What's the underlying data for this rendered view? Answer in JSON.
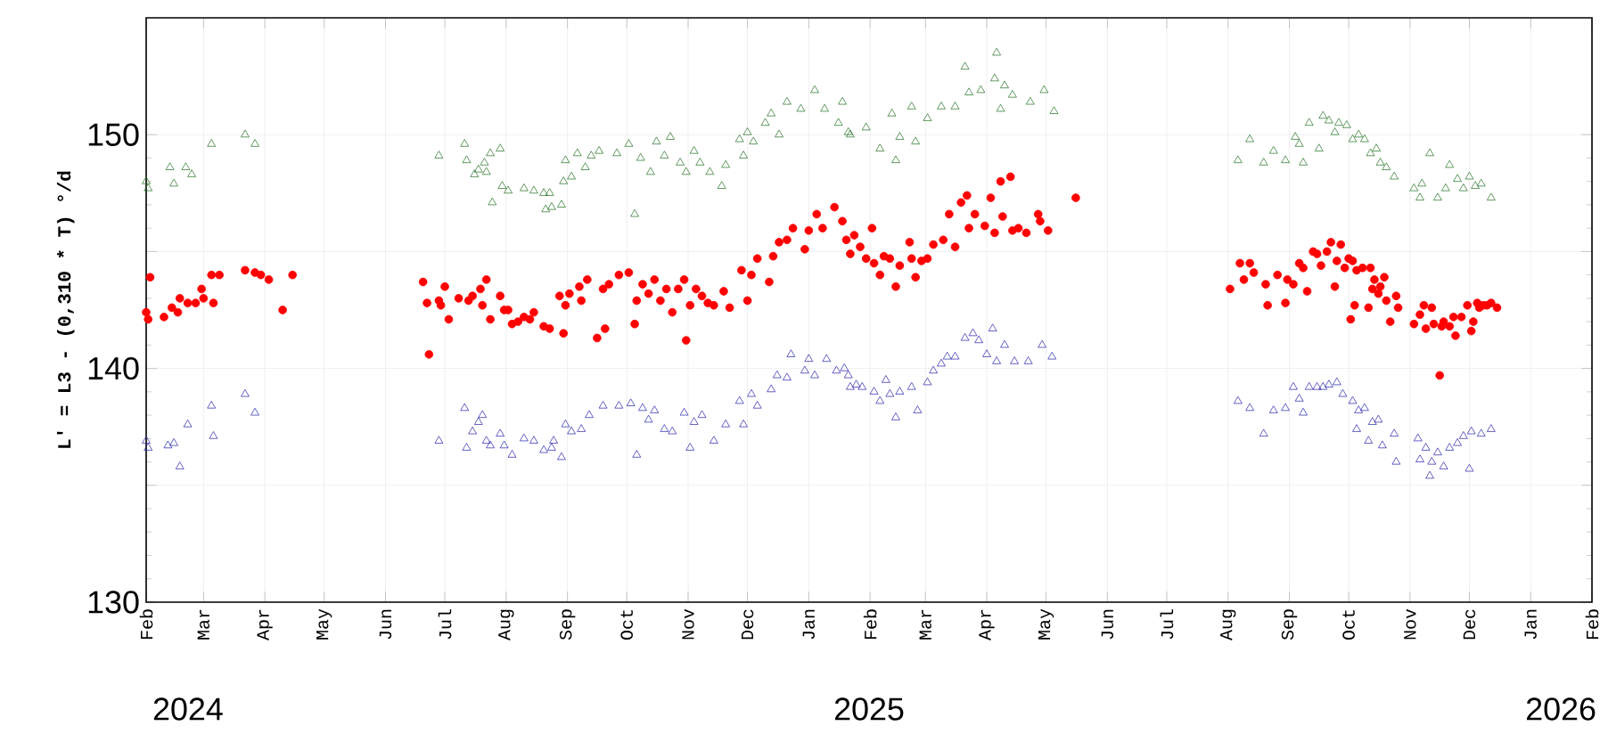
{
  "chart_data": {
    "type": "scatter",
    "ylabel": "L' = L3 - (0,310 * T) °/d",
    "xlim": [
      "2024-02-01",
      "2026-02-01"
    ],
    "ylim": [
      130,
      155
    ],
    "xticks": [
      {
        "value": "2024-02",
        "label": "Feb"
      },
      {
        "value": "2024-03",
        "label": "Mar"
      },
      {
        "value": "2024-04",
        "label": "Apr"
      },
      {
        "value": "2024-05",
        "label": "May"
      },
      {
        "value": "2024-06",
        "label": "Jun"
      },
      {
        "value": "2024-07",
        "label": "Jul"
      },
      {
        "value": "2024-08",
        "label": "Aug"
      },
      {
        "value": "2024-09",
        "label": "Sep"
      },
      {
        "value": "2024-10",
        "label": "Oct"
      },
      {
        "value": "2024-11",
        "label": "Nov"
      },
      {
        "value": "2024-12",
        "label": "Dec"
      },
      {
        "value": "2025-01",
        "label": "Jan"
      },
      {
        "value": "2025-02",
        "label": "Feb"
      },
      {
        "value": "2025-03",
        "label": "Mar"
      },
      {
        "value": "2025-04",
        "label": "Apr"
      },
      {
        "value": "2025-05",
        "label": "May"
      },
      {
        "value": "2025-06",
        "label": "Jun"
      },
      {
        "value": "2025-07",
        "label": "Jul"
      },
      {
        "value": "2025-08",
        "label": "Aug"
      },
      {
        "value": "2025-09",
        "label": "Sep"
      },
      {
        "value": "2025-10",
        "label": "Oct"
      },
      {
        "value": "2025-11",
        "label": "Nov"
      },
      {
        "value": "2025-12",
        "label": "Dec"
      },
      {
        "value": "2026-01",
        "label": "Jan"
      },
      {
        "value": "2026-02",
        "label": "Feb"
      }
    ],
    "yticks": [
      130,
      {
        "value": 135,
        "label": null
      },
      140,
      {
        "value": 145,
        "label": null
      },
      150
    ],
    "grid": true,
    "annotations": [
      "2024",
      "2025",
      "2026"
    ],
    "series": [
      {
        "color": "#ff0000",
        "marker": "circle",
        "x": [
          "2024-02-01",
          "2024-02-02",
          "2024-02-03",
          "2024-02-10",
          "2024-02-14",
          "2024-02-17",
          "2024-02-18",
          "2024-02-22",
          "2024-02-26",
          "2024-02-29",
          "2024-03-01",
          "2024-03-05",
          "2024-03-06",
          "2024-03-09",
          "2024-03-22",
          "2024-03-27",
          "2024-03-30",
          "2024-04-03",
          "2024-04-10",
          "2024-04-15",
          "2024-06-20",
          "2024-06-22",
          "2024-06-23",
          "2024-06-28",
          "2024-06-29",
          "2024-07-01",
          "2024-07-03",
          "2024-07-08",
          "2024-07-13",
          "2024-07-15",
          "2024-07-19",
          "2024-07-20",
          "2024-07-22",
          "2024-07-24",
          "2024-07-29",
          "2024-07-31",
          "2024-08-02",
          "2024-08-04",
          "2024-08-07",
          "2024-08-10",
          "2024-08-13",
          "2024-08-15",
          "2024-08-20",
          "2024-08-23",
          "2024-08-28",
          "2024-08-30",
          "2024-08-31",
          "2024-09-02",
          "2024-09-07",
          "2024-09-08",
          "2024-09-11",
          "2024-09-16",
          "2024-09-19",
          "2024-09-20",
          "2024-09-22",
          "2024-09-27",
          "2024-10-02",
          "2024-10-05",
          "2024-10-06",
          "2024-10-09",
          "2024-10-12",
          "2024-10-15",
          "2024-10-18",
          "2024-10-21",
          "2024-10-24",
          "2024-10-27",
          "2024-10-30",
          "2024-10-31",
          "2024-11-02",
          "2024-11-05",
          "2024-11-08",
          "2024-11-11",
          "2024-11-14",
          "2024-11-19",
          "2024-11-22",
          "2024-11-28",
          "2024-12-01",
          "2024-12-03",
          "2024-12-06",
          "2024-12-12",
          "2024-12-14",
          "2024-12-17",
          "2024-12-21",
          "2024-12-24",
          "2024-12-30",
          "2025-01-01",
          "2025-01-05",
          "2025-01-08",
          "2025-01-14",
          "2025-01-18",
          "2025-01-20",
          "2025-01-22",
          "2025-01-24",
          "2025-01-27",
          "2025-01-30",
          "2025-02-02",
          "2025-02-03",
          "2025-02-06",
          "2025-02-08",
          "2025-02-11",
          "2025-02-14",
          "2025-02-16",
          "2025-02-21",
          "2025-02-22",
          "2025-02-24",
          "2025-02-27",
          "2025-03-02",
          "2025-03-05",
          "2025-03-10",
          "2025-03-13",
          "2025-03-16",
          "2025-03-19",
          "2025-03-22",
          "2025-03-23",
          "2025-03-26",
          "2025-03-31",
          "2025-04-03",
          "2025-04-05",
          "2025-04-08",
          "2025-04-09",
          "2025-04-13",
          "2025-04-14",
          "2025-04-17",
          "2025-04-21",
          "2025-04-27",
          "2025-04-28",
          "2025-05-02",
          "2025-05-16",
          "2025-08-02",
          "2025-08-07",
          "2025-08-09",
          "2025-08-12",
          "2025-08-14",
          "2025-08-20",
          "2025-08-21",
          "2025-08-26",
          "2025-08-30",
          "2025-08-31",
          "2025-09-03",
          "2025-09-06",
          "2025-09-08",
          "2025-09-10",
          "2025-09-13",
          "2025-09-15",
          "2025-09-17",
          "2025-09-20",
          "2025-09-22",
          "2025-09-24",
          "2025-09-25",
          "2025-09-27",
          "2025-09-29",
          "2025-10-01",
          "2025-10-02",
          "2025-10-03",
          "2025-10-04",
          "2025-10-05",
          "2025-10-08",
          "2025-10-11",
          "2025-10-12",
          "2025-10-13",
          "2025-10-14",
          "2025-10-16",
          "2025-10-17",
          "2025-10-19",
          "2025-10-20",
          "2025-10-22",
          "2025-10-25",
          "2025-10-26",
          "2025-11-03",
          "2025-11-06",
          "2025-11-08",
          "2025-11-09",
          "2025-11-12",
          "2025-11-13",
          "2025-11-16",
          "2025-11-17",
          "2025-11-18",
          "2025-11-21",
          "2025-11-23",
          "2025-11-24",
          "2025-11-27",
          "2025-11-30",
          "2025-12-02",
          "2025-12-03",
          "2025-12-05",
          "2025-12-06",
          "2025-12-08",
          "2025-12-10",
          "2025-12-12",
          "2025-12-15"
        ],
        "values": [
          142.4,
          142.1,
          143.9,
          142.2,
          142.6,
          142.4,
          143.0,
          142.8,
          142.8,
          143.4,
          143.0,
          144.0,
          142.8,
          144.0,
          144.2,
          144.1,
          144.0,
          143.8,
          142.5,
          144.0,
          143.7,
          142.8,
          140.6,
          142.9,
          142.7,
          143.5,
          142.1,
          143.0,
          142.9,
          143.1,
          143.4,
          142.7,
          143.8,
          142.1,
          143.1,
          142.5,
          142.5,
          141.9,
          142.0,
          142.2,
          142.1,
          142.4,
          141.8,
          141.7,
          143.1,
          141.5,
          142.7,
          143.2,
          143.5,
          142.9,
          143.8,
          141.3,
          143.4,
          141.7,
          143.6,
          144.0,
          144.1,
          141.9,
          142.9,
          143.6,
          143.2,
          143.8,
          142.9,
          143.4,
          142.4,
          143.4,
          143.8,
          141.2,
          142.7,
          143.4,
          143.1,
          142.8,
          142.7,
          143.3,
          142.6,
          144.2,
          142.9,
          144.0,
          144.7,
          143.7,
          144.8,
          145.4,
          145.5,
          146.0,
          145.1,
          145.9,
          146.6,
          146.0,
          146.9,
          146.3,
          145.5,
          144.9,
          145.7,
          145.2,
          144.7,
          146.0,
          144.5,
          144.0,
          144.8,
          144.7,
          143.5,
          144.4,
          145.4,
          144.7,
          143.9,
          144.6,
          144.7,
          145.3,
          145.5,
          146.6,
          145.2,
          147.1,
          147.4,
          146.0,
          146.6,
          146.1,
          147.3,
          145.8,
          148.0,
          146.5,
          148.2,
          145.9,
          146.0,
          145.8,
          146.6,
          146.3,
          145.9,
          147.3,
          143.4,
          144.5,
          143.8,
          144.5,
          144.1,
          143.6,
          142.7,
          144.0,
          142.8,
          143.8,
          143.6,
          144.5,
          144.3,
          143.3,
          145.0,
          144.9,
          144.4,
          145.0,
          145.4,
          143.5,
          144.6,
          145.3,
          144.3,
          144.7,
          142.1,
          144.6,
          142.7,
          144.2,
          144.3,
          142.6,
          144.3,
          143.4,
          143.8,
          143.2,
          143.5,
          143.9,
          142.9,
          142.0,
          143.1,
          142.6,
          141.9,
          142.3,
          142.7,
          141.7,
          142.6,
          141.9,
          139.7,
          141.8,
          142.0,
          141.8,
          142.2,
          141.4,
          142.2,
          142.7,
          141.6,
          142.0,
          142.8,
          142.6,
          142.7,
          142.7,
          142.8,
          142.6
        ]
      },
      {
        "color": "#1e6e1e",
        "marker": "triangle",
        "x": [
          "2024-02-01",
          "2024-02-02",
          "2024-02-13",
          "2024-02-15",
          "2024-02-21",
          "2024-02-24",
          "2024-03-05",
          "2024-03-22",
          "2024-03-27",
          "2024-06-28",
          "2024-07-11",
          "2024-07-12",
          "2024-07-16",
          "2024-07-18",
          "2024-07-21",
          "2024-07-22",
          "2024-07-24",
          "2024-07-25",
          "2024-07-29",
          "2024-07-30",
          "2024-08-02",
          "2024-08-10",
          "2024-08-15",
          "2024-08-20",
          "2024-08-21",
          "2024-08-23",
          "2024-08-24",
          "2024-08-29",
          "2024-08-30",
          "2024-08-31",
          "2024-09-03",
          "2024-09-06",
          "2024-09-10",
          "2024-09-13",
          "2024-09-17",
          "2024-09-26",
          "2024-10-02",
          "2024-10-05",
          "2024-10-08",
          "2024-10-13",
          "2024-10-16",
          "2024-10-20",
          "2024-10-23",
          "2024-10-28",
          "2024-10-31",
          "2024-11-04",
          "2024-11-07",
          "2024-11-12",
          "2024-11-18",
          "2024-11-20",
          "2024-11-27",
          "2024-11-29",
          "2024-12-01",
          "2024-12-04",
          "2024-12-10",
          "2024-12-13",
          "2024-12-17",
          "2024-12-21",
          "2024-12-28",
          "2025-01-04",
          "2025-01-09",
          "2025-01-16",
          "2025-01-18",
          "2025-01-21",
          "2025-01-22",
          "2025-01-30",
          "2025-02-06",
          "2025-02-12",
          "2025-02-14",
          "2025-02-16",
          "2025-02-22",
          "2025-02-24",
          "2025-03-02",
          "2025-03-09",
          "2025-03-16",
          "2025-03-21",
          "2025-03-23",
          "2025-03-29",
          "2025-04-05",
          "2025-04-06",
          "2025-04-08",
          "2025-04-10",
          "2025-04-14",
          "2025-04-23",
          "2025-04-30",
          "2025-05-05",
          "2025-08-06",
          "2025-08-12",
          "2025-08-19",
          "2025-08-24",
          "2025-08-30",
          "2025-09-04",
          "2025-09-06",
          "2025-09-08",
          "2025-09-11",
          "2025-09-16",
          "2025-09-18",
          "2025-09-21",
          "2025-09-24",
          "2025-09-26",
          "2025-09-30",
          "2025-10-03",
          "2025-10-06",
          "2025-10-09",
          "2025-10-12",
          "2025-10-15",
          "2025-10-17",
          "2025-10-20",
          "2025-10-24",
          "2025-11-03",
          "2025-11-06",
          "2025-11-07",
          "2025-11-11",
          "2025-11-15",
          "2025-11-19",
          "2025-11-21",
          "2025-11-25",
          "2025-11-28",
          "2025-12-01",
          "2025-12-04",
          "2025-12-07",
          "2025-12-12"
        ],
        "values": [
          148.0,
          147.7,
          148.6,
          147.9,
          148.6,
          148.3,
          149.6,
          150.0,
          149.6,
          149.1,
          149.6,
          148.9,
          148.3,
          148.5,
          148.8,
          148.4,
          149.2,
          147.1,
          149.4,
          147.8,
          147.6,
          147.7,
          147.6,
          147.5,
          146.8,
          147.5,
          146.9,
          147.0,
          148.0,
          148.9,
          148.2,
          149.2,
          148.6,
          149.1,
          149.3,
          149.2,
          149.6,
          146.6,
          149.0,
          148.4,
          149.7,
          149.1,
          149.9,
          148.8,
          148.4,
          149.3,
          148.8,
          148.4,
          147.8,
          148.7,
          149.8,
          149.1,
          150.1,
          149.7,
          150.5,
          150.9,
          150.0,
          151.4,
          151.1,
          151.9,
          151.1,
          150.5,
          151.4,
          150.1,
          150.0,
          150.3,
          149.4,
          150.9,
          148.9,
          149.9,
          151.2,
          149.7,
          150.7,
          151.2,
          151.2,
          152.9,
          151.8,
          151.9,
          152.4,
          153.5,
          151.1,
          152.1,
          151.7,
          151.4,
          151.9,
          151.0,
          148.9,
          149.8,
          148.8,
          149.3,
          148.9,
          149.9,
          149.6,
          148.8,
          150.5,
          149.4,
          150.8,
          150.6,
          150.1,
          150.5,
          150.4,
          149.8,
          150.0,
          149.8,
          149.2,
          149.4,
          148.8,
          148.6,
          148.2,
          147.7,
          147.3,
          147.9,
          149.2,
          147.3,
          147.7,
          148.7,
          148.1,
          147.7,
          148.2,
          147.8,
          147.9,
          147.3
        ]
      },
      {
        "color": "#2020a8",
        "marker": "triangle",
        "x": [
          "2024-02-01",
          "2024-02-02",
          "2024-02-12",
          "2024-02-15",
          "2024-02-18",
          "2024-02-22",
          "2024-03-05",
          "2024-03-06",
          "2024-03-22",
          "2024-03-27",
          "2024-06-28",
          "2024-07-11",
          "2024-07-12",
          "2024-07-15",
          "2024-07-18",
          "2024-07-20",
          "2024-07-22",
          "2024-07-24",
          "2024-07-29",
          "2024-07-31",
          "2024-08-04",
          "2024-08-10",
          "2024-08-15",
          "2024-08-20",
          "2024-08-24",
          "2024-08-25",
          "2024-08-29",
          "2024-08-31",
          "2024-09-03",
          "2024-09-08",
          "2024-09-12",
          "2024-09-19",
          "2024-09-27",
          "2024-10-03",
          "2024-10-06",
          "2024-10-09",
          "2024-10-12",
          "2024-10-15",
          "2024-10-20",
          "2024-10-24",
          "2024-10-30",
          "2024-11-02",
          "2024-11-04",
          "2024-11-08",
          "2024-11-14",
          "2024-11-20",
          "2024-11-27",
          "2024-11-29",
          "2024-12-03",
          "2024-12-06",
          "2024-12-13",
          "2024-12-16",
          "2024-12-21",
          "2024-12-23",
          "2024-12-30",
          "2025-01-01",
          "2025-01-04",
          "2025-01-10",
          "2025-01-15",
          "2025-01-19",
          "2025-01-21",
          "2025-01-22",
          "2025-01-25",
          "2025-01-28",
          "2025-02-03",
          "2025-02-06",
          "2025-02-09",
          "2025-02-11",
          "2025-02-14",
          "2025-02-16",
          "2025-02-22",
          "2025-02-25",
          "2025-03-02",
          "2025-03-05",
          "2025-03-09",
          "2025-03-12",
          "2025-03-16",
          "2025-03-21",
          "2025-03-25",
          "2025-03-28",
          "2025-04-01",
          "2025-04-04",
          "2025-04-06",
          "2025-04-10",
          "2025-04-15",
          "2025-04-22",
          "2025-04-29",
          "2025-05-04",
          "2025-08-06",
          "2025-08-12",
          "2025-08-19",
          "2025-08-24",
          "2025-08-30",
          "2025-09-03",
          "2025-09-06",
          "2025-09-08",
          "2025-09-11",
          "2025-09-15",
          "2025-09-18",
          "2025-09-21",
          "2025-09-25",
          "2025-09-28",
          "2025-10-03",
          "2025-10-05",
          "2025-10-06",
          "2025-10-09",
          "2025-10-11",
          "2025-10-13",
          "2025-10-16",
          "2025-10-18",
          "2025-10-24",
          "2025-10-25",
          "2025-11-05",
          "2025-11-06",
          "2025-11-09",
          "2025-11-11",
          "2025-11-12",
          "2025-11-15",
          "2025-11-18",
          "2025-11-21",
          "2025-11-25",
          "2025-11-28",
          "2025-12-01",
          "2025-12-02",
          "2025-12-07",
          "2025-12-12"
        ],
        "values": [
          136.9,
          136.6,
          136.7,
          136.8,
          135.8,
          137.6,
          138.4,
          137.1,
          138.9,
          138.1,
          136.9,
          138.3,
          136.6,
          137.3,
          137.7,
          138.0,
          136.9,
          136.7,
          137.2,
          136.7,
          136.3,
          137.0,
          136.9,
          136.5,
          136.6,
          136.9,
          136.2,
          137.6,
          137.3,
          137.4,
          138.0,
          138.4,
          138.4,
          138.5,
          136.3,
          138.3,
          137.8,
          138.2,
          137.4,
          137.3,
          138.1,
          136.6,
          137.7,
          138.0,
          136.9,
          137.6,
          138.6,
          137.6,
          138.9,
          138.4,
          139.1,
          139.7,
          139.6,
          140.6,
          139.9,
          140.4,
          139.7,
          140.4,
          139.9,
          140.0,
          139.7,
          139.2,
          139.3,
          139.2,
          139.0,
          138.6,
          139.5,
          138.9,
          137.9,
          139.0,
          139.2,
          138.2,
          139.4,
          139.9,
          140.2,
          140.5,
          140.5,
          141.3,
          141.5,
          141.2,
          140.6,
          141.7,
          140.3,
          141.0,
          140.3,
          140.3,
          141.0,
          140.5,
          138.6,
          138.3,
          137.2,
          138.2,
          138.3,
          139.2,
          138.7,
          138.1,
          139.2,
          139.2,
          139.2,
          139.3,
          139.4,
          138.9,
          138.6,
          137.4,
          138.2,
          138.3,
          136.9,
          137.7,
          137.8,
          136.7,
          137.2,
          136.0,
          137.0,
          136.1,
          136.6,
          135.4,
          136.0,
          136.4,
          135.8,
          136.6,
          136.8,
          137.1,
          135.7,
          137.3,
          137.2,
          137.4
        ]
      }
    ]
  }
}
